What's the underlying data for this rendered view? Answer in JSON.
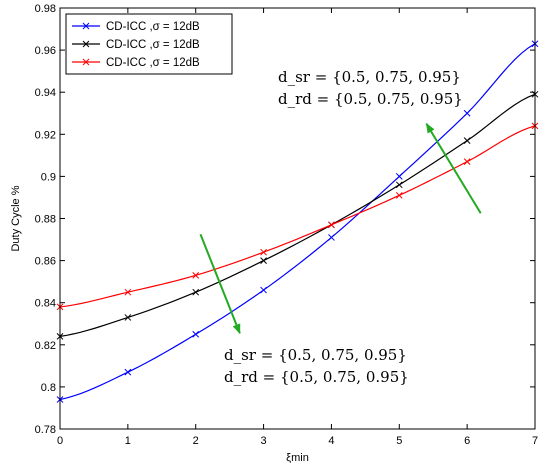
{
  "chart_data": {
    "type": "line",
    "title": "",
    "xlabel": "ξmin",
    "ylabel": "Duty Cycle %",
    "xlim": [
      0,
      7
    ],
    "ylim": [
      0.78,
      0.98
    ],
    "x_ticks": [
      0,
      1,
      2,
      3,
      4,
      5,
      6,
      7
    ],
    "y_ticks": [
      0.78,
      0.8,
      0.82,
      0.84,
      0.86,
      0.88,
      0.9,
      0.92,
      0.94,
      0.96,
      0.98
    ],
    "x_tick_labels": [
      "0",
      "1",
      "2",
      "3",
      "4",
      "5",
      "6",
      "7"
    ],
    "y_tick_labels": [
      "0.78",
      "0.8",
      "0.82",
      "0.84",
      "0.86",
      "0.88",
      "0.9",
      "0.92",
      "0.94",
      "0.96",
      "0.98"
    ],
    "grid": false,
    "legend_position": "top-left",
    "x": [
      0,
      1,
      2,
      3,
      4,
      5,
      6,
      7
    ],
    "series": [
      {
        "name": "CD-ICC ,σ = 12dB",
        "color": "#0000ff",
        "marker": "x",
        "values": [
          0.794,
          0.807,
          0.825,
          0.846,
          0.871,
          0.9,
          0.93,
          0.963
        ]
      },
      {
        "name": "CD-ICC ,σ = 12dB",
        "color": "#000000",
        "marker": "x",
        "values": [
          0.824,
          0.833,
          0.845,
          0.86,
          0.877,
          0.896,
          0.917,
          0.939
        ]
      },
      {
        "name": "CD-ICC ,σ = 12dB",
        "color": "#ff0000",
        "marker": "x",
        "values": [
          0.838,
          0.845,
          0.853,
          0.864,
          0.877,
          0.891,
          0.907,
          0.924
        ]
      }
    ],
    "annotations": [
      {
        "id": "upper",
        "color": "#22aa22",
        "line1": "d_sr = {0.5,  0.75,  0.95}",
        "line2": "d_rd = {0.5,  0.75,  0.95}",
        "arrow_from": [
          6.2,
          0.8825
        ],
        "arrow_to": [
          5.4,
          0.925
        ]
      },
      {
        "id": "lower",
        "color": "#22aa22",
        "line1": "d_sr = {0.5,  0.75,  0.95}",
        "line2": "d_rd = {0.5,  0.75,  0.95}",
        "arrow_from": [
          2.07,
          0.8725
        ],
        "arrow_to": [
          2.65,
          0.8255
        ]
      }
    ]
  }
}
